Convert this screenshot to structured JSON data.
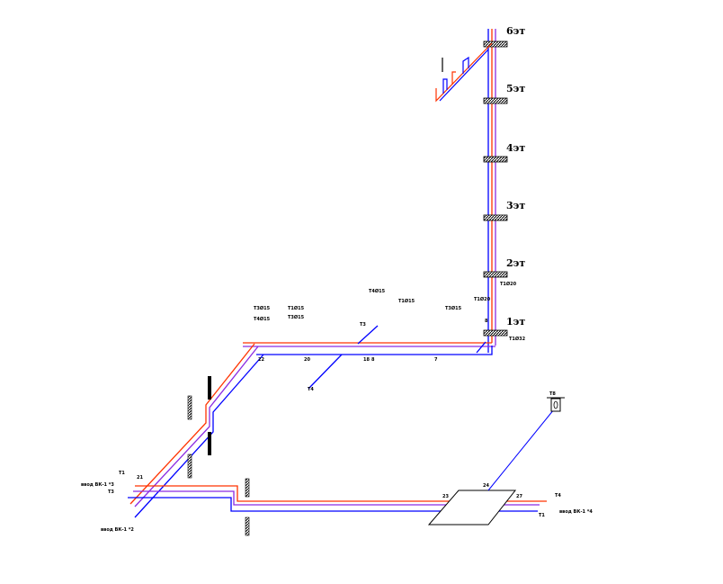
{
  "colors": {
    "supply": "#ff3300",
    "circulation": "#8a2be2",
    "cold": "#0000ff",
    "outline": "#000000"
  },
  "floors": [
    "6эт",
    "5эт",
    "4эт",
    "3эт",
    "2эт",
    "1эт"
  ],
  "nodes": [
    "22",
    "20",
    "18",
    "8",
    "7",
    "8",
    "23",
    "24",
    "27",
    "21",
    "Т8"
  ],
  "riser_label": "Т1Ø32",
  "pipe_labels": [
    "Т3Ø15",
    "Т4Ø15",
    "Т1Ø15",
    "Т3Ø15",
    "Т4Ø15",
    "Т1Ø15",
    "Т3Ø15",
    "Т1Ø20",
    "Т1Ø20"
  ],
  "inlet_labels": [
    "Т3",
    "Т4",
    "Т1",
    "Т3",
    "Т4",
    "Т1"
  ],
  "inlet_notes": [
    "ввод ВК-1 *3",
    "ввод ВК-1 *2",
    "ввод ВК-1 *4"
  ]
}
